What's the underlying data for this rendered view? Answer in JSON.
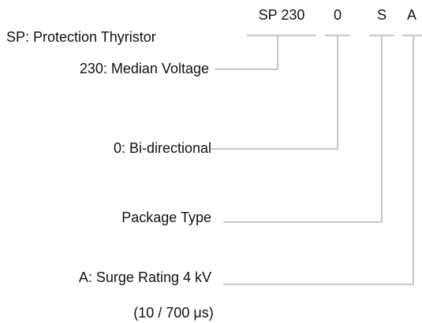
{
  "codes": [
    "SP 230",
    "0",
    "S",
    "A"
  ],
  "labels": [
    "SP: Protection Thyristor",
    "230: Median Voltage",
    "0: Bi-directional",
    "Package Type",
    "A: Surge Rating 4 kV",
    "(10 / 700 μs)"
  ]
}
